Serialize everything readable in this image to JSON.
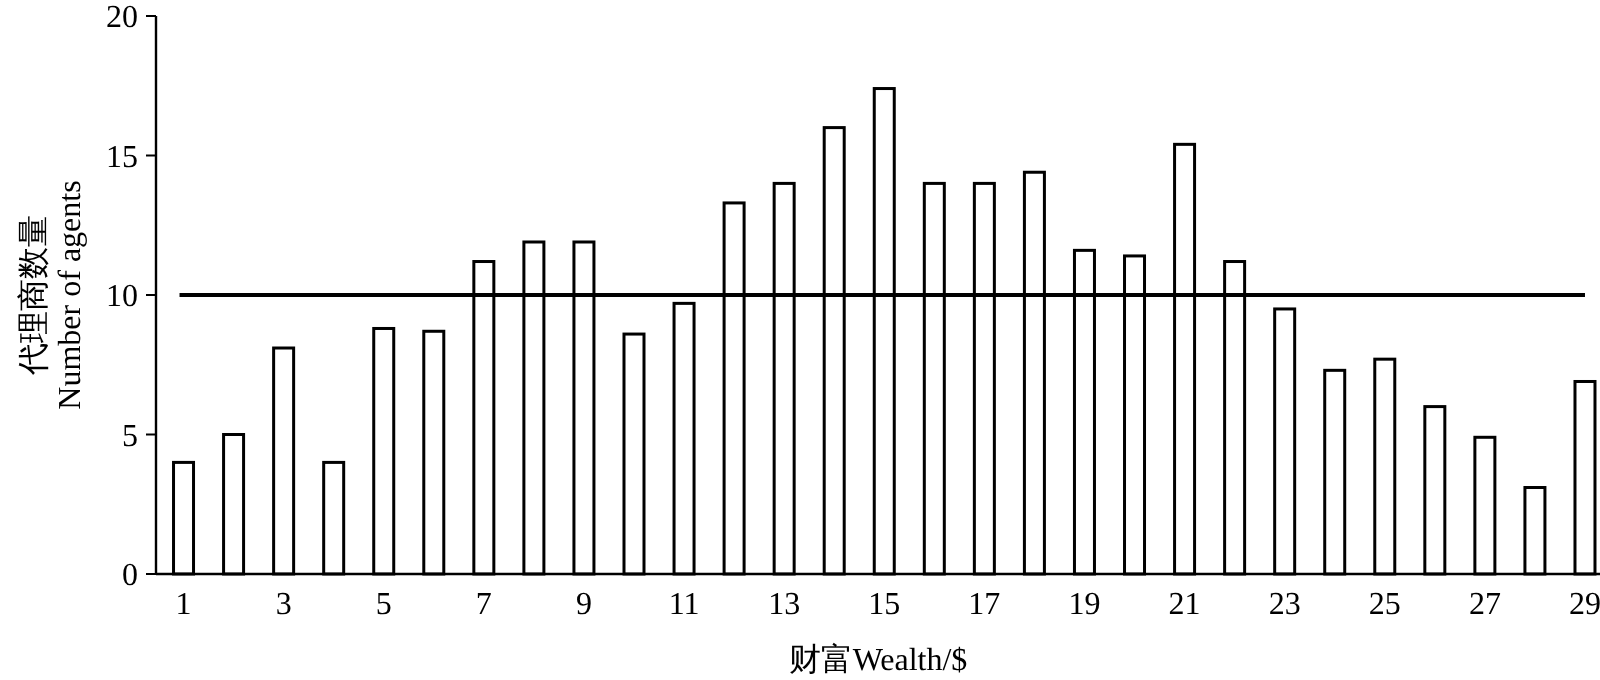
{
  "chart_data": {
    "type": "bar",
    "xlabel": "财富Wealth/$",
    "ylabel": "代理商数量\nNumber of agents",
    "x": [
      1,
      2,
      3,
      4,
      5,
      6,
      7,
      8,
      9,
      10,
      11,
      12,
      13,
      14,
      15,
      16,
      17,
      18,
      19,
      20,
      21,
      22,
      23,
      24,
      25,
      26,
      27,
      28,
      29
    ],
    "values": [
      4.0,
      5.0,
      8.1,
      4.0,
      8.8,
      8.7,
      11.2,
      11.9,
      11.9,
      8.6,
      9.7,
      13.3,
      14.0,
      16.0,
      17.4,
      14.0,
      14.0,
      14.4,
      11.6,
      11.4,
      15.4,
      11.2,
      9.5,
      7.3,
      7.7,
      6.0,
      4.9,
      3.1,
      6.9
    ],
    "color": "#ffffff",
    "xlim": [
      0.45,
      29.3
    ],
    "xticks": [
      1,
      3,
      5,
      7,
      9,
      11,
      13,
      15,
      17,
      19,
      21,
      23,
      25,
      27,
      29
    ],
    "ylim": [
      0,
      20
    ],
    "yticks": [
      0,
      5,
      10,
      15,
      20
    ],
    "ref_lines": [
      {
        "axis": "y",
        "value": 10,
        "color": "#000000"
      }
    ]
  }
}
